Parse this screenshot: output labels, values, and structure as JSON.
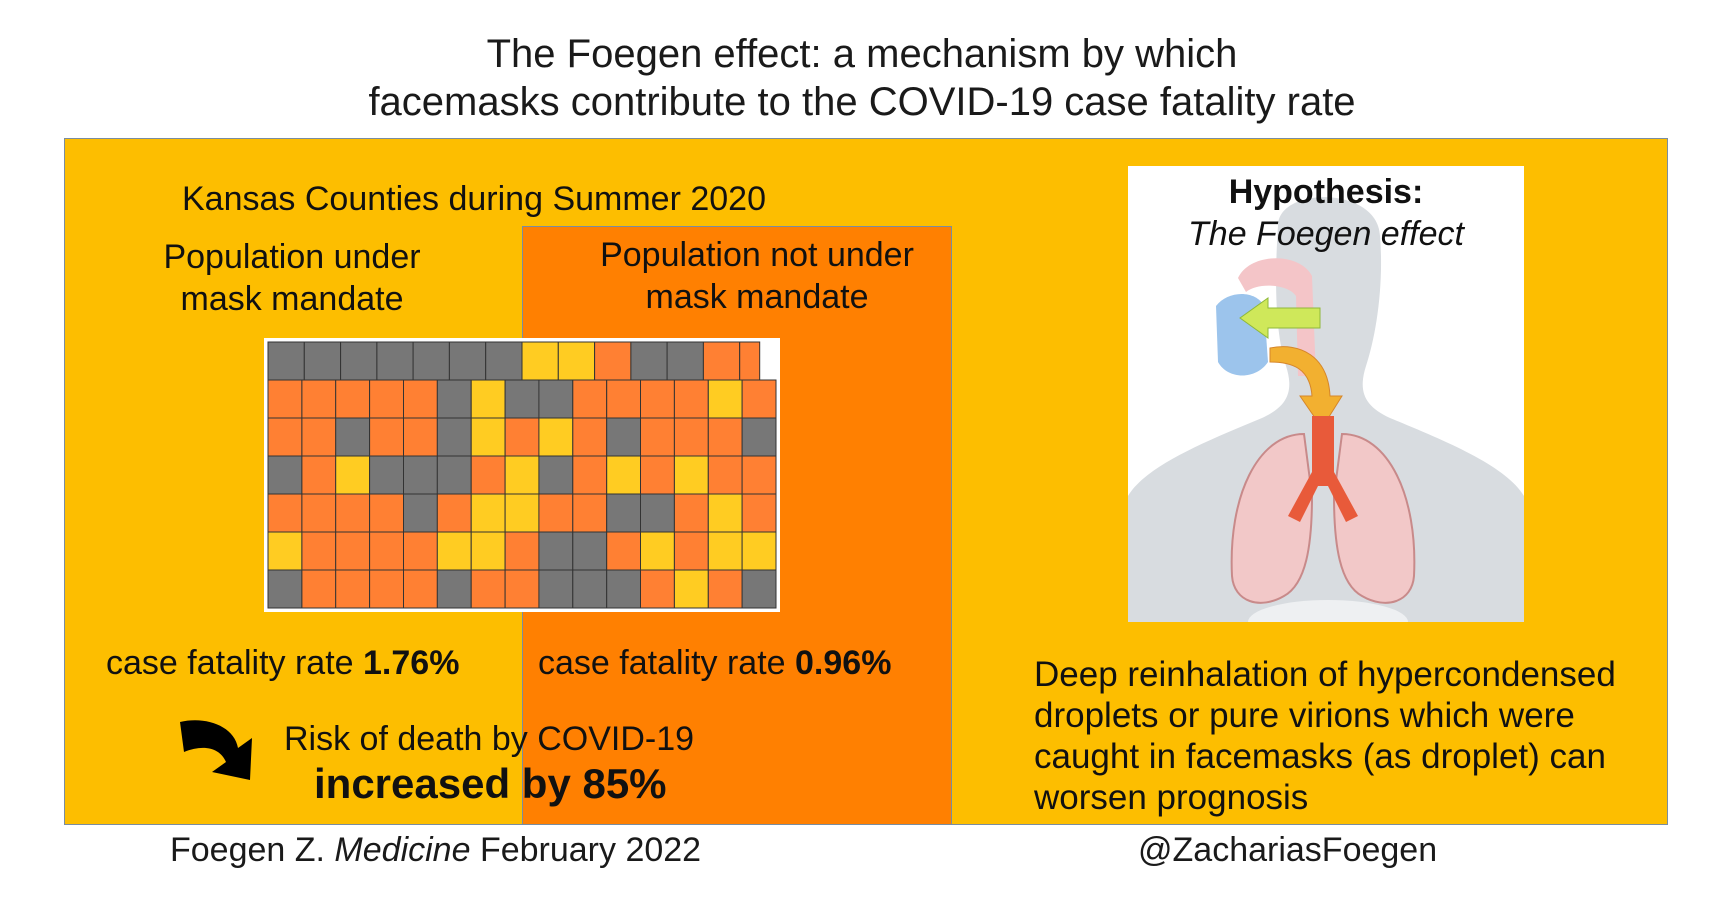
{
  "title": {
    "line1": "The Foegen effect: a mechanism by which",
    "line2": "facemasks contribute to the COVID-19 case fatality rate"
  },
  "left_panel": {
    "heading": "Kansas Counties during Summer 2020",
    "mandate_label": {
      "line1": "Population under",
      "line2": "mask mandate"
    },
    "no_mandate_label": {
      "line1": "Population not under",
      "line2": "mask mandate"
    },
    "cfr_mandate": {
      "prefix": "case fatality rate ",
      "value": "1.76%"
    },
    "cfr_no_mandate": {
      "prefix": "case fatality rate ",
      "value": "0.96%"
    },
    "risk": {
      "line1": "Risk of death by COVID-19",
      "line2": "increased by 85%"
    },
    "arrow_icon": "curved-arrow-icon"
  },
  "right_panel": {
    "hypothesis_label": "Hypothesis:",
    "hypothesis_name": "The Foegen effect",
    "description": {
      "line1": "Deep reinhalation of hypercondensed",
      "line2": "droplets or pure virions which were",
      "line3": "caught in facemasks (as droplet) can",
      "line4": "worsen prognosis"
    },
    "illustration_icon": "respiratory-system-icon"
  },
  "footer": {
    "citation_author": "Foegen Z. ",
    "citation_journal": "Medicine",
    "citation_date": " February 2022",
    "handle": "@ZachariasFoegen"
  },
  "colors": {
    "panel": "#FDBE00",
    "no_mandate_box": "#FF8001",
    "county_gray": "#777777",
    "county_orange": "#FF8033",
    "county_yellow": "#FFCC22"
  }
}
